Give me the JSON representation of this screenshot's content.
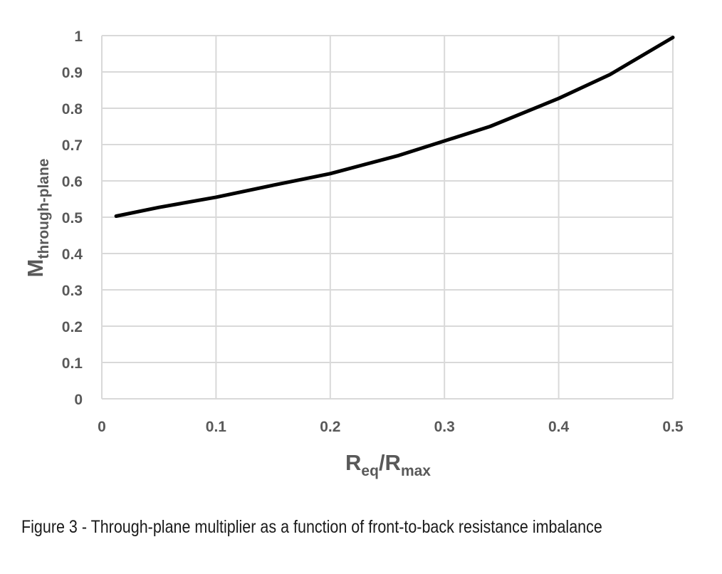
{
  "caption": "Figure 3 - Through-plane multiplier as a function of front-to-back resistance imbalance",
  "chart_data": {
    "type": "line",
    "ylabel": {
      "main": "M",
      "subscript": "through-plane"
    },
    "xlabel": {
      "main1": "R",
      "sub1": "eq",
      "mid": "/R",
      "sub2": "max"
    },
    "xlim": [
      0,
      0.5
    ],
    "ylim": [
      0,
      1
    ],
    "xticks": [
      "0",
      "0.1",
      "0.2",
      "0.3",
      "0.4",
      "0.5"
    ],
    "yticks": [
      "0",
      "0.1",
      "0.2",
      "0.3",
      "0.4",
      "0.5",
      "0.6",
      "0.7",
      "0.8",
      "0.9",
      "1"
    ],
    "grid": true,
    "legend": "none",
    "series": [
      {
        "color": "#000000",
        "x": [
          0.0125,
          0.05,
          0.1,
          0.15,
          0.2,
          0.26,
          0.3,
          0.34,
          0.4,
          0.445,
          0.5
        ],
        "y": [
          0.503,
          0.527,
          0.555,
          0.588,
          0.62,
          0.67,
          0.71,
          0.75,
          0.827,
          0.893,
          0.995
        ]
      }
    ]
  }
}
